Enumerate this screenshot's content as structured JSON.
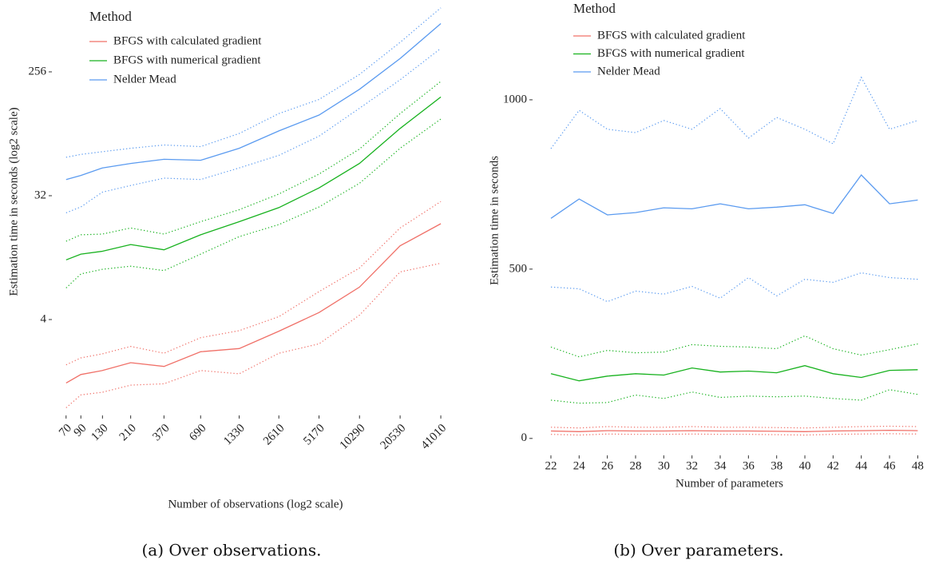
{
  "chart_data": [
    {
      "type": "line",
      "xscale": "log2",
      "yscale": "log2",
      "x_label": "Number of observations (log2 scale)",
      "y_label": "Estimation time in seconds (log2 scale)",
      "legend_title": "Method",
      "caption": "(a) Over observations.",
      "x": [
        70,
        90,
        130,
        210,
        370,
        690,
        1330,
        2610,
        5170,
        10290,
        20530,
        41010
      ],
      "xlim": [
        55,
        56000
      ],
      "ylim": [
        0.8,
        800
      ],
      "xticks": [
        70,
        90,
        130,
        210,
        370,
        690,
        1330,
        2610,
        5170,
        10290,
        20530,
        41010
      ],
      "yticks": [
        4,
        32,
        256
      ],
      "grid": false,
      "series": [
        {
          "name": "BFGS with calculated gradient",
          "color": "#f07068",
          "values": [
            1.38,
            1.59,
            1.7,
            1.94,
            1.82,
            2.33,
            2.46,
            3.29,
            4.5,
            6.9,
            13.8,
            20
          ],
          "upper": [
            1.87,
            2.1,
            2.25,
            2.55,
            2.27,
            2.95,
            3.32,
            4.2,
            6.4,
            9.5,
            18.6,
            29
          ],
          "lower": [
            0.91,
            1.13,
            1.18,
            1.33,
            1.36,
            1.7,
            1.61,
            2.27,
            2.66,
            4.3,
            8.9,
            10.3
          ]
        },
        {
          "name": "BFGS with numerical gradient",
          "color": "#17b21e",
          "values": [
            10.9,
            12,
            12.6,
            14.1,
            12.9,
            16.6,
            20.7,
            26.2,
            36.5,
            55,
            99,
            168
          ],
          "upper": [
            14.9,
            16.6,
            16.8,
            18.6,
            16.8,
            20.7,
            25.3,
            32.9,
            46,
            70,
            127,
            218
          ],
          "lower": [
            6.8,
            8.6,
            9.3,
            9.8,
            9.1,
            12,
            16.1,
            19.7,
            26.5,
            39.4,
            71,
            116
          ]
        },
        {
          "name": "Nelder Mead",
          "color": "#5b9bf0",
          "values": [
            42,
            45,
            51,
            55,
            59,
            58,
            71,
            95,
            124,
            191,
            320,
            576
          ],
          "upper": [
            61,
            64,
            67,
            71,
            75,
            73,
            91,
            127,
            161,
            245,
            420,
            750
          ],
          "lower": [
            24,
            26.5,
            34,
            38,
            43,
            42,
            51,
            63,
            87,
            139,
            224,
            380
          ]
        }
      ]
    },
    {
      "type": "line",
      "xscale": "linear",
      "yscale": "linear",
      "x_label": "Number of parameters",
      "y_label": "Estimation time in seconds",
      "legend_title": "Method",
      "caption": "(b) Over parameters.",
      "x": [
        22,
        24,
        26,
        28,
        30,
        32,
        34,
        36,
        38,
        40,
        42,
        44,
        46,
        48
      ],
      "xlim": [
        20.7,
        48.6
      ],
      "ylim": [
        -50,
        1290
      ],
      "xticks": [
        22,
        24,
        26,
        28,
        30,
        32,
        34,
        36,
        38,
        40,
        42,
        44,
        46,
        48
      ],
      "yticks": [
        0,
        500,
        1000
      ],
      "grid": false,
      "series": [
        {
          "name": "BFGS with calculated gradient",
          "color": "#f07068",
          "values": [
            22,
            20,
            23,
            22,
            22,
            23,
            22,
            22,
            21,
            20,
            22,
            23,
            24,
            23
          ],
          "upper": [
            33,
            31,
            35,
            33,
            33,
            35,
            33,
            33,
            32,
            31,
            33,
            35,
            36,
            35
          ],
          "lower": [
            12,
            10,
            13,
            12,
            12,
            13,
            12,
            12,
            11,
            10,
            12,
            13,
            14,
            13
          ]
        },
        {
          "name": "BFGS with numerical gradient",
          "color": "#17b21e",
          "values": [
            191,
            170,
            184,
            191,
            187,
            208,
            196,
            199,
            194,
            215,
            191,
            180,
            201,
            203
          ],
          "upper": [
            270,
            241,
            260,
            253,
            255,
            277,
            272,
            270,
            265,
            303,
            265,
            246,
            262,
            279
          ],
          "lower": [
            113,
            104,
            106,
            128,
            118,
            137,
            121,
            125,
            123,
            125,
            118,
            113,
            144,
            130
          ]
        },
        {
          "name": "Nelder Mead",
          "color": "#5b9bf0",
          "values": [
            650,
            707,
            660,
            667,
            681,
            678,
            693,
            678,
            683,
            690,
            664,
            778,
            693,
            704
          ],
          "upper": [
            856,
            969,
            913,
            903,
            939,
            913,
            974,
            887,
            948,
            913,
            870,
            1066,
            913,
            939
          ],
          "lower": [
            447,
            442,
            404,
            435,
            426,
            449,
            414,
            475,
            421,
            470,
            461,
            489,
            475,
            470
          ]
        }
      ]
    }
  ]
}
